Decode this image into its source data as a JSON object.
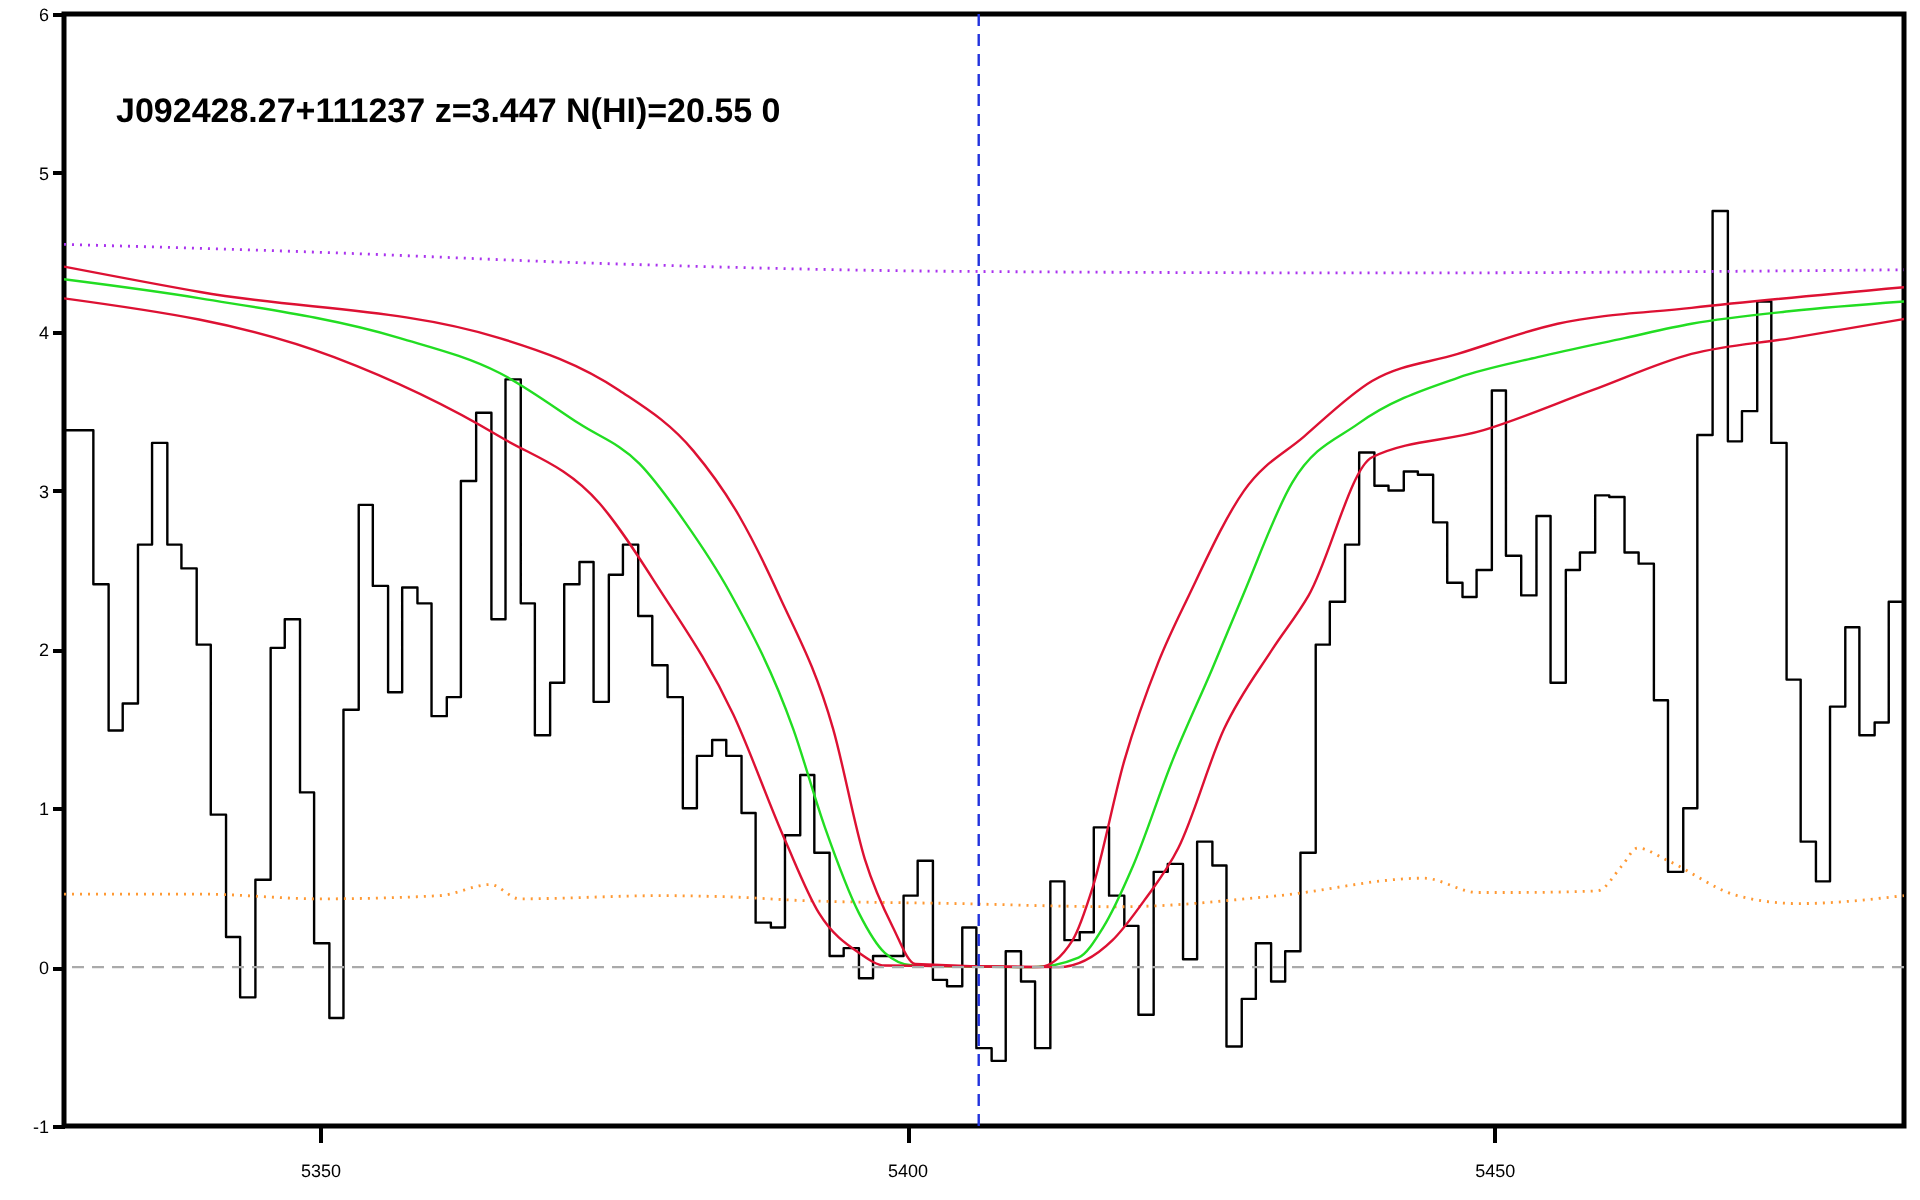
{
  "chart_data": {
    "type": "line",
    "title": "J092428.27+111237 z=3.447 N(HI)=20.55 0",
    "xlim": [
      5328.2,
      5484.9
    ],
    "xticks": [
      5350,
      5400,
      5450
    ],
    "ylim": [
      -1,
      6
    ],
    "yticks": [
      -1,
      0,
      1,
      2,
      3,
      4,
      5,
      6
    ],
    "grid": false,
    "series": [
      {
        "type": "step",
        "color": "#000000",
        "line_style": "solid",
        "x": [
          5328.2,
          5329.5,
          5330.7,
          5332.0,
          5333.2,
          5334.5,
          5335.7,
          5337.0,
          5338.2,
          5339.5,
          5340.7,
          5342.0,
          5343.2,
          5344.5,
          5345.8,
          5347.0,
          5348.3,
          5349.5,
          5350.8,
          5352.0,
          5353.3,
          5354.5,
          5355.8,
          5357.0,
          5358.3,
          5359.5,
          5360.8,
          5362.0,
          5363.3,
          5364.6,
          5365.8,
          5367.1,
          5368.3,
          5369.6,
          5370.8,
          5372.1,
          5373.3,
          5374.6,
          5375.8,
          5377.1,
          5378.3,
          5379.6,
          5380.9,
          5382.1,
          5383.4,
          5384.6,
          5385.9,
          5387.1,
          5388.4,
          5389.6,
          5390.9,
          5392.1,
          5393.4,
          5394.6,
          5395.9,
          5397.1,
          5398.4,
          5399.7,
          5400.9,
          5402.2,
          5403.4,
          5404.7,
          5405.9,
          5407.2,
          5408.4,
          5409.7,
          5410.9,
          5412.2,
          5413.4,
          5414.7,
          5415.9,
          5417.2,
          5418.5,
          5419.7,
          5421.0,
          5422.2,
          5423.5,
          5424.7,
          5426.0,
          5427.2,
          5428.5,
          5429.7,
          5431.0,
          5432.2,
          5433.5,
          5434.8,
          5436.0,
          5437.3,
          5438.5,
          5439.8,
          5441.0,
          5442.3,
          5443.5,
          5444.8,
          5446.0,
          5447.3,
          5448.5,
          5449.8,
          5451.0,
          5452.3,
          5453.6,
          5454.8,
          5456.1,
          5457.3,
          5458.6,
          5459.8,
          5461.1,
          5462.3,
          5463.6,
          5464.8,
          5466.1,
          5467.3,
          5468.6,
          5469.9,
          5471.1,
          5472.4,
          5473.6,
          5474.9,
          5476.1,
          5477.4,
          5478.6,
          5479.9,
          5481.1,
          5482.4,
          5483.6,
          5484.9
        ],
        "values": [
          3.38,
          3.38,
          2.41,
          1.49,
          1.66,
          2.66,
          3.3,
          2.66,
          2.51,
          2.03,
          0.96,
          0.19,
          -0.19,
          0.55,
          2.01,
          2.19,
          1.1,
          0.15,
          -0.32,
          1.62,
          2.91,
          2.4,
          1.73,
          2.39,
          2.29,
          1.58,
          1.7,
          3.06,
          3.49,
          2.19,
          3.7,
          2.29,
          1.46,
          1.79,
          2.41,
          2.55,
          1.67,
          2.47,
          2.66,
          2.21,
          1.9,
          1.7,
          1.0,
          1.33,
          1.43,
          1.33,
          0.97,
          0.28,
          0.25,
          0.83,
          1.21,
          0.72,
          0.07,
          0.12,
          -0.07,
          0.07,
          0.07,
          0.45,
          0.67,
          -0.08,
          -0.12,
          0.25,
          -0.51,
          -0.59,
          0.1,
          -0.09,
          -0.51,
          0.54,
          0.17,
          0.22,
          0.88,
          0.45,
          0.26,
          -0.3,
          0.6,
          0.65,
          0.05,
          0.79,
          0.64,
          -0.5,
          -0.2,
          0.15,
          -0.09,
          0.1,
          0.72,
          2.03,
          2.3,
          2.66,
          3.24,
          3.03,
          3.0,
          3.12,
          3.1,
          2.8,
          2.42,
          2.33,
          2.5,
          3.63,
          2.59,
          2.34,
          2.84,
          1.79,
          2.5,
          2.61,
          2.97,
          2.96,
          2.61,
          2.54,
          1.68,
          0.6,
          1.0,
          3.35,
          4.76,
          3.31,
          3.5,
          4.19,
          3.3,
          1.81,
          0.79,
          0.54,
          1.64,
          2.14,
          1.46,
          1.54,
          2.3,
          2.3
        ]
      },
      {
        "type": "line",
        "color": "#aa33ee",
        "line_style": "dotted",
        "x": [
          5328.2,
          5350.0,
          5373.8,
          5404.4,
          5441.8,
          5484.9
        ],
        "values": [
          4.55,
          4.5,
          4.43,
          4.38,
          4.37,
          4.39
        ]
      },
      {
        "type": "line",
        "color": "#ff9933",
        "line_style": "dotted",
        "x": [
          5328.2,
          5339.8,
          5350.0,
          5360.2,
          5364.5,
          5367.0,
          5378.9,
          5385.7,
          5390.8,
          5404.4,
          5418.0,
          5431.6,
          5444.0,
          5448.6,
          5452.0,
          5458.8,
          5460.9,
          5462.2,
          5464.8,
          5470.7,
          5475.9,
          5484.9
        ],
        "values": [
          0.46,
          0.46,
          0.43,
          0.45,
          0.52,
          0.43,
          0.45,
          0.44,
          0.42,
          0.4,
          0.38,
          0.45,
          0.56,
          0.47,
          0.47,
          0.48,
          0.64,
          0.75,
          0.67,
          0.45,
          0.4,
          0.45
        ]
      },
      {
        "type": "line",
        "color": "#22dd22",
        "line_style": "solid",
        "x": [
          5328.2,
          5339.8,
          5356.8,
          5365.3,
          5372.1,
          5377.2,
          5381.1,
          5384.9,
          5390.3,
          5393.0,
          5395.9,
          5398.1,
          5400.5,
          5410.7,
          5414.6,
          5416.7,
          5419.2,
          5422.6,
          5426.0,
          5428.6,
          5432.8,
          5438.4,
          5446.9,
          5453.7,
          5461.1,
          5466.8,
          5475.3,
          5484.9
        ],
        "values": [
          4.33,
          4.21,
          3.96,
          3.74,
          3.42,
          3.17,
          2.8,
          2.36,
          1.5,
          0.88,
          0.34,
          0.09,
          0.01,
          0.0,
          0.06,
          0.25,
          0.63,
          1.3,
          1.88,
          2.34,
          3.05,
          3.42,
          3.71,
          3.84,
          3.96,
          4.05,
          4.13,
          4.19
        ]
      },
      {
        "type": "line",
        "color": "#dd1133",
        "line_style": "solid",
        "x": [
          5328.2,
          5339.8,
          5365.3,
          5375.5,
          5381.8,
          5385.7,
          5389.1,
          5393.7,
          5396.4,
          5398.8,
          5400.7,
          5411.2,
          5414.1,
          5415.8,
          5418.5,
          5421.4,
          5424.0,
          5428.7,
          5433.8,
          5439.6,
          5446.9,
          5455.4,
          5466.8,
          5484.9
        ],
        "values": [
          4.41,
          4.25,
          3.96,
          3.63,
          3.25,
          2.84,
          2.34,
          1.5,
          0.68,
          0.25,
          0.02,
          0.0,
          0.17,
          0.5,
          1.3,
          1.92,
          2.34,
          3.0,
          3.34,
          3.69,
          3.86,
          4.05,
          4.15,
          4.28
        ]
      },
      {
        "type": "line",
        "color": "#dd1133",
        "line_style": "solid",
        "x": [
          5328.2,
          5351.2,
          5365.3,
          5373.8,
          5378.9,
          5385.2,
          5389.6,
          5392.5,
          5395.9,
          5398.1,
          5412.9,
          5417.5,
          5420.2,
          5423.1,
          5427.0,
          5431.1,
          5434.2,
          5439.6,
          5449.1,
          5458.3,
          5466.8,
          5475.3,
          5484.9
        ],
        "values": [
          4.21,
          3.84,
          3.34,
          2.92,
          2.38,
          1.59,
          0.8,
          0.34,
          0.09,
          0.01,
          0.0,
          0.17,
          0.42,
          0.75,
          1.5,
          2.0,
          2.34,
          3.21,
          3.38,
          3.63,
          3.86,
          3.96,
          4.08
        ]
      }
    ],
    "ref_lines": [
      {
        "axis": "y",
        "value": 0,
        "color": "#aaaaaa",
        "line_style": "dashed"
      },
      {
        "axis": "x",
        "value": 5406.1,
        "color": "#2233dd",
        "line_style": "dashed"
      }
    ]
  }
}
